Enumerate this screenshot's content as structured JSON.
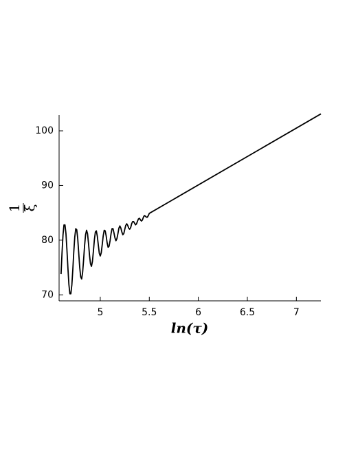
{
  "chart_data": {
    "type": "line",
    "x_label": "ln(τ)",
    "y_label": {
      "numerator": "1",
      "denominator": "ξ"
    },
    "color": "#000000",
    "xlim": [
      4.58,
      7.25
    ],
    "ylim": [
      68.9,
      102.9
    ],
    "xticks": [
      5,
      5.5,
      6,
      6.5,
      7
    ],
    "yticks": [
      70,
      80,
      90,
      100
    ],
    "x": [
      4.6,
      4.61,
      4.62,
      4.63,
      4.64,
      4.65,
      4.66,
      4.67,
      4.68,
      4.69,
      4.7,
      4.71,
      4.72,
      4.73,
      4.74,
      4.75,
      4.76,
      4.77,
      4.78,
      4.79,
      4.8,
      4.81,
      4.82,
      4.83,
      4.84,
      4.85,
      4.86,
      4.87,
      4.88,
      4.89,
      4.9,
      4.91,
      4.92,
      4.93,
      4.94,
      4.95,
      4.96,
      4.97,
      4.98,
      4.99,
      5,
      5.01,
      5.02,
      5.03,
      5.04,
      5.05,
      5.06,
      5.07,
      5.08,
      5.09,
      5.1,
      5.11,
      5.12,
      5.13,
      5.14,
      5.15,
      5.16,
      5.17,
      5.18,
      5.19,
      5.2,
      5.21,
      5.22,
      5.23,
      5.24,
      5.25,
      5.26,
      5.27,
      5.28,
      5.29,
      5.3,
      5.31,
      5.32,
      5.33,
      5.34,
      5.35,
      5.36,
      5.37,
      5.38,
      5.39,
      5.4,
      5.41,
      5.42,
      5.43,
      5.44,
      5.45,
      5.46,
      5.47,
      5.48,
      5.49,
      5.5,
      7.25
    ],
    "values": [
      73.8,
      77.7,
      81.0,
      82.8,
      82.8,
      81.2,
      78.2,
      74.9,
      71.9,
      70.2,
      70.2,
      71.8,
      74.6,
      77.9,
      80.6,
      82.1,
      81.9,
      80.3,
      77.7,
      75.1,
      73.3,
      72.9,
      74.1,
      76.4,
      79.0,
      81.0,
      81.8,
      81.2,
      79.4,
      77.3,
      75.7,
      75.2,
      76.1,
      78.0,
      80.1,
      81.5,
      81.7,
      80.7,
      79.1,
      77.6,
      77.1,
      77.7,
      79.2,
      80.8,
      81.8,
      81.7,
      80.8,
      79.5,
      78.7,
      78.9,
      79.9,
      81.2,
      82.1,
      82.1,
      81.3,
      80.4,
      79.9,
      80.3,
      81.2,
      82.2,
      82.6,
      82.2,
      81.5,
      81.0,
      81.2,
      82.0,
      82.7,
      83.0,
      82.7,
      82.2,
      82.0,
      82.3,
      83.0,
      83.4,
      83.4,
      83.1,
      82.8,
      83.0,
      83.5,
      83.9,
      84.0,
      83.7,
      83.5,
      83.7,
      84.2,
      84.5,
      84.4,
      84.2,
      84.2,
      84.5,
      84.9,
      103.1
    ]
  }
}
